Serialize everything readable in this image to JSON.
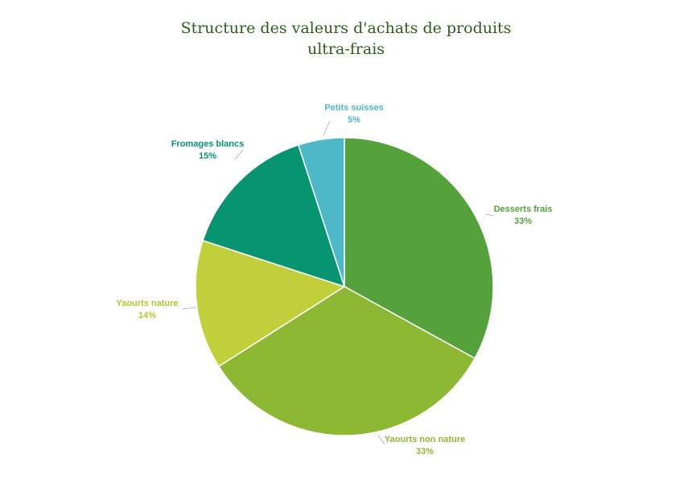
{
  "chart_data": {
    "type": "pie",
    "title": [
      "Structure des valeurs d'achats de produits",
      "ultra-frais"
    ],
    "slices": [
      {
        "label": "Desserts frais",
        "value": 33,
        "value_label": "33%",
        "color": "#55a13b",
        "label_color": "#55a13b"
      },
      {
        "label": "Yaourts non nature",
        "value": 33,
        "value_label": "33%",
        "color": "#8db834",
        "label_color": "#8db834"
      },
      {
        "label": "Yaourts nature",
        "value": 14,
        "value_label": "14%",
        "color": "#c0cf3a",
        "label_color": "#b5c42e"
      },
      {
        "label": "Fromages blancs",
        "value": 15,
        "value_label": "15%",
        "color": "#079470",
        "label_color": "#079470"
      },
      {
        "label": "Petits suisses",
        "value": 5,
        "value_label": "5%",
        "color": "#4cb8c8",
        "label_color": "#4cb8c8"
      }
    ],
    "start_angle": "12 o'clock",
    "direction": "clockwise",
    "legend": "none",
    "data_labels": "outside with leader lines"
  }
}
